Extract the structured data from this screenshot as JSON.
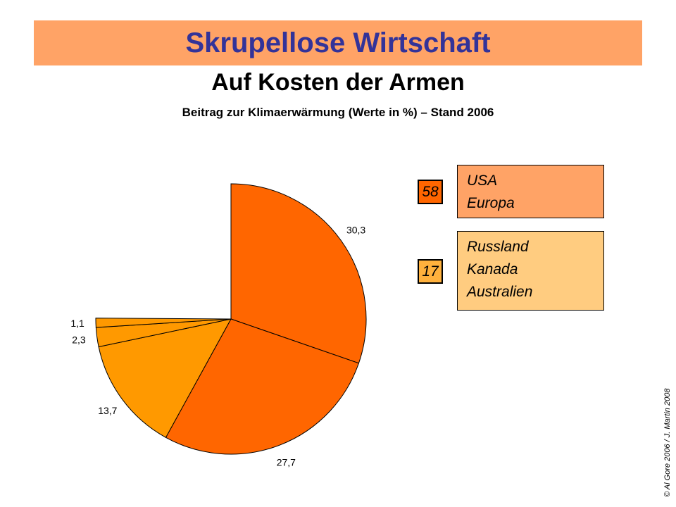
{
  "title": "Skrupellose Wirtschaft",
  "subtitle": "Auf Kosten der Armen",
  "caption": "Beitrag zur Klimaerwärmung (Werte in %) – Stand 2006",
  "legend": [
    {
      "value": "58",
      "lines": [
        "USA",
        "Europa"
      ],
      "number_color": "#FF6600",
      "box_color": "#FFA366"
    },
    {
      "value": "17",
      "lines": [
        "Russland",
        "Kanada",
        "Australien"
      ],
      "number_color": "#FFB13D",
      "box_color": "#FFCC80"
    }
  ],
  "copyright": "© Al Gore 2006 / J. Martin 2008",
  "chart_data": {
    "type": "pie",
    "start": "top, clockwise",
    "slices": [
      {
        "label": "30,3",
        "value": 30.3,
        "color": "#FF6600"
      },
      {
        "label": "27,7",
        "value": 27.7,
        "color": "#FF6600"
      },
      {
        "label": "13,7",
        "value": 13.7,
        "color": "#FF9900"
      },
      {
        "label": "2,3",
        "value": 2.3,
        "color": "#FF9900"
      },
      {
        "label": "1,1",
        "value": 1.1,
        "color": "#FF9900"
      }
    ],
    "total_scale": 100
  }
}
